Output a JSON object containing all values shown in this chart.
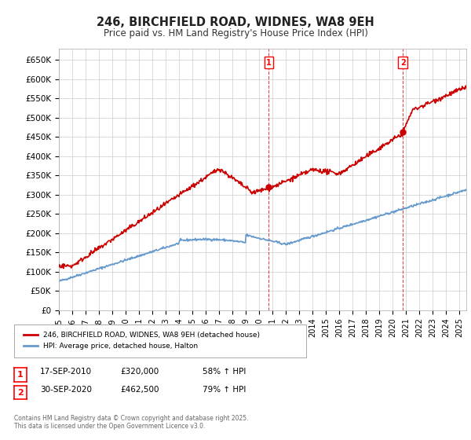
{
  "title": "246, BIRCHFIELD ROAD, WIDNES, WA8 9EH",
  "subtitle": "Price paid vs. HM Land Registry's House Price Index (HPI)",
  "ylabel_ticks": [
    "£0",
    "£50K",
    "£100K",
    "£150K",
    "£200K",
    "£250K",
    "£300K",
    "£350K",
    "£400K",
    "£450K",
    "£500K",
    "£550K",
    "£600K",
    "£650K"
  ],
  "ytick_values": [
    0,
    50000,
    100000,
    150000,
    200000,
    250000,
    300000,
    350000,
    400000,
    450000,
    500000,
    550000,
    600000,
    650000
  ],
  "ylim": [
    0,
    680000
  ],
  "xlim_start": 1995.0,
  "xlim_end": 2025.5,
  "red_line_color": "#cc0000",
  "blue_line_color": "#6699cc",
  "marker1_x": 2010.71,
  "marker1_y": 320000,
  "marker2_x": 2020.75,
  "marker2_y": 462500,
  "legend_label_red": "246, BIRCHFIELD ROAD, WIDNES, WA8 9EH (detached house)",
  "legend_label_blue": "HPI: Average price, detached house, Halton",
  "note1_date": "17-SEP-2010",
  "note1_price": "£320,000",
  "note1_hpi": "58% ↑ HPI",
  "note2_date": "30-SEP-2020",
  "note2_price": "£462,500",
  "note2_hpi": "79% ↑ HPI",
  "footer": "Contains HM Land Registry data © Crown copyright and database right 2025.\nThis data is licensed under the Open Government Licence v3.0.",
  "background_color": "#ffffff",
  "grid_color": "#cccccc"
}
